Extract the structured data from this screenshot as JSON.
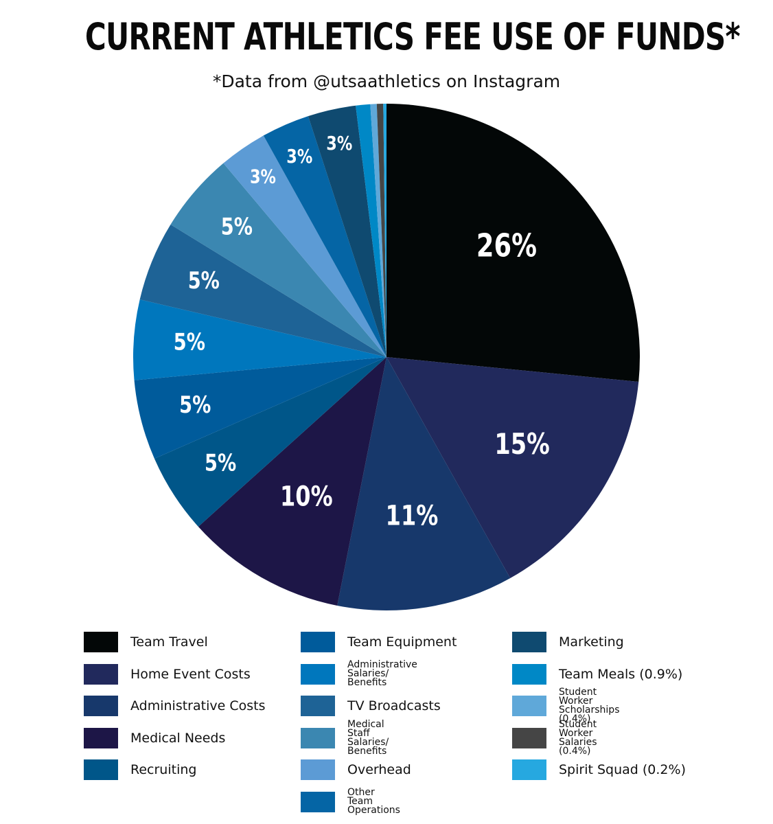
{
  "chart_data": {
    "type": "pie",
    "title": "CURRENT ATHLETICS FEE USE OF FUNDS*",
    "subtitle": "*Data from @utsaathletics on Instagram",
    "slices": [
      {
        "name": "Team Travel",
        "value": 26,
        "label": "26%",
        "color": "#030707"
      },
      {
        "name": "Home Event Costs",
        "value": 15,
        "label": "15%",
        "color": "#21295c"
      },
      {
        "name": "Administrative Costs",
        "value": 11,
        "label": "11%",
        "color": "#17386b"
      },
      {
        "name": "Medical Needs",
        "value": 10,
        "label": "10%",
        "color": "#1d1647"
      },
      {
        "name": "Recruiting",
        "value": 5,
        "label": "5%",
        "color": "#005689"
      },
      {
        "name": "Team Equipment",
        "value": 5,
        "label": "5%",
        "color": "#005b9b"
      },
      {
        "name": "Administrative Salaries/ Benefits",
        "value": 5,
        "label": "5%",
        "color": "#0077bd"
      },
      {
        "name": "TV Broadcasts",
        "value": 5,
        "label": "5%",
        "color": "#1e6396"
      },
      {
        "name": "Medical Staff Salaries/ Benefits",
        "value": 5,
        "label": "5%",
        "color": "#3b87b1"
      },
      {
        "name": "Overhead",
        "value": 3,
        "label": "3%",
        "color": "#5c9bd5"
      },
      {
        "name": "Other Team Operations",
        "value": 3,
        "label": "3%",
        "color": "#0565a5"
      },
      {
        "name": "Marketing",
        "value": 3,
        "label": "3%",
        "color": "#0f4a70"
      },
      {
        "name": "Team Meals (0.9%)",
        "value": 0.9,
        "label": "",
        "color": "#0088c6"
      },
      {
        "name": "Student Worker Scholarships (0.4%)",
        "value": 0.4,
        "label": "",
        "color": "#5fa8d9"
      },
      {
        "name": "Student Worker Salaries (0.4%)",
        "value": 0.4,
        "label": "",
        "color": "#454545"
      },
      {
        "name": "Spirit Squad (0.2%)",
        "value": 0.2,
        "label": "",
        "color": "#26a8e0"
      }
    ],
    "legend": {
      "columns": [
        [
          {
            "text": "Team Travel",
            "color": "#030707"
          },
          {
            "text": "Home Event Costs",
            "color": "#21295c"
          },
          {
            "text": "Administrative Costs",
            "color": "#17386b"
          },
          {
            "text": "Medical Needs",
            "color": "#1d1647"
          },
          {
            "text": "Recruiting",
            "color": "#005689"
          }
        ],
        [
          {
            "text": "Team Equipment",
            "color": "#005b9b"
          },
          {
            "text": "Administrative Salaries/\nBenefits",
            "color": "#0077bd",
            "small": true
          },
          {
            "text": "TV Broadcasts",
            "color": "#1e6396"
          },
          {
            "text": "Medical Staff Salaries/\nBenefits",
            "color": "#3b87b1",
            "small": true
          },
          {
            "text": "Overhead",
            "color": "#5c9bd5"
          },
          {
            "text": "Other Team Operations",
            "color": "#0565a5",
            "small": true
          }
        ],
        [
          {
            "text": "Marketing",
            "color": "#0f4a70"
          },
          {
            "text": "Team Meals (0.9%)",
            "color": "#0088c6"
          },
          {
            "text": "Student Worker\nScholarships (0.4%)",
            "color": "#5fa8d9",
            "small": true
          },
          {
            "text": "Student Worker\nSalaries (0.4%)",
            "color": "#454545",
            "small": true
          },
          {
            "text": "Spirit Squad (0.2%)",
            "color": "#26a8e0"
          }
        ]
      ]
    }
  }
}
